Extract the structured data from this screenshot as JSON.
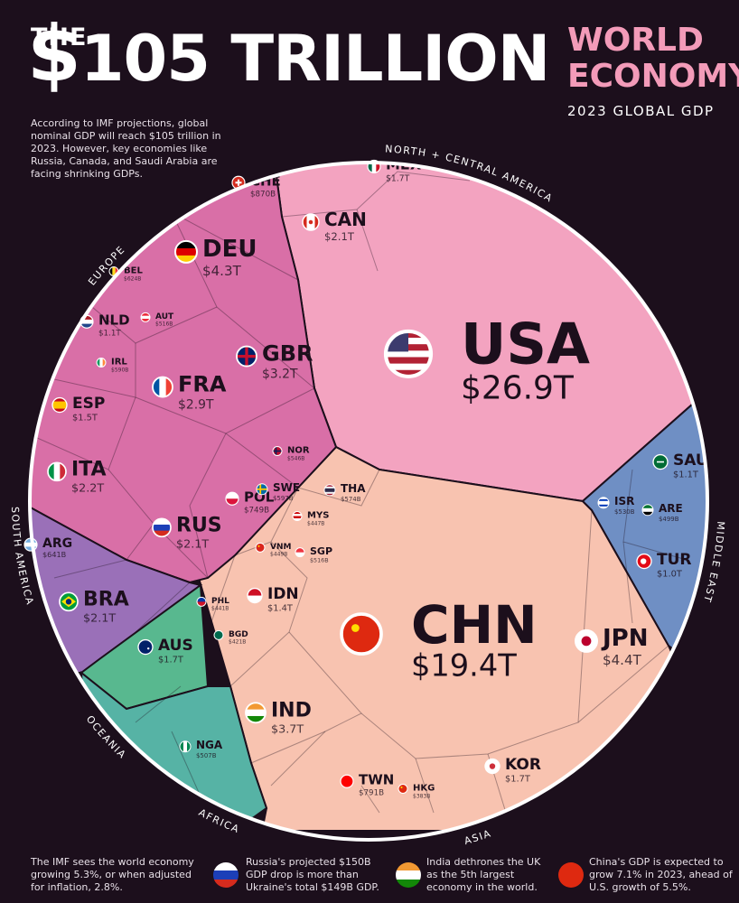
{
  "header": {
    "the": "THE",
    "big": "105 TRILLION",
    "dollar": "$",
    "world": "WORLD",
    "economy": "ECONOMY",
    "subtitle": "2023 GLOBAL GDP"
  },
  "intro": "According to IMF projections, global nominal GDP will reach $105 trillion in 2023. However, key economies like Russia, Canada, and Saudi Arabia are facing shrinking GDPs.",
  "footer": {
    "main": "The IMF sees the world economy growing 5.3%, or when adjusted for inflation, 2.8%.",
    "notes": [
      "Russia's projected $150B GDP drop is more than Ukraine's total $149B GDP.",
      "India dethrones the UK as the 5th largest economy in the world.",
      "China's GDP is expected to grow 7.1% in 2023, ahead of U.S. growth of 5.5%."
    ]
  },
  "colors": {
    "background": "#1c0f1c",
    "north_central_america": "#f3a3c0",
    "asia": "#f8c3b0",
    "europe": "#d96fa7",
    "middle_east": "#6f8fc4",
    "south_america": "#9a70b8",
    "oceania": "#58b88f",
    "africa": "#56b3a5"
  },
  "chart_data": {
    "type": "voronoi-treemap",
    "title": "$105 TRILLION WORLD ECONOMY",
    "subtitle": "2023 GLOBAL GDP",
    "regions": [
      "NORTH + CENTRAL AMERICA",
      "MIDDLE EAST",
      "ASIA",
      "AFRICA",
      "OCEANIA",
      "SOUTH AMERICA",
      "EUROPE"
    ],
    "countries": [
      {
        "code": "USA",
        "value": "$26.9T",
        "region": "NORTH + CENTRAL AMERICA"
      },
      {
        "code": "CAN",
        "value": "$2.1T",
        "region": "NORTH + CENTRAL AMERICA"
      },
      {
        "code": "MEX",
        "value": "$1.7T",
        "region": "NORTH + CENTRAL AMERICA"
      },
      {
        "code": "CHN",
        "value": "$19.4T",
        "region": "ASIA"
      },
      {
        "code": "JPN",
        "value": "$4.4T",
        "region": "ASIA"
      },
      {
        "code": "IND",
        "value": "$3.7T",
        "region": "ASIA"
      },
      {
        "code": "KOR",
        "value": "$1.7T",
        "region": "ASIA"
      },
      {
        "code": "IDN",
        "value": "$1.4T",
        "region": "ASIA"
      },
      {
        "code": "TWN",
        "value": "$791B",
        "region": "ASIA"
      },
      {
        "code": "THA",
        "value": "$574B",
        "region": "ASIA"
      },
      {
        "code": "SGP",
        "value": "$516B",
        "region": "ASIA"
      },
      {
        "code": "MYS",
        "value": "$447B",
        "region": "ASIA"
      },
      {
        "code": "VNM",
        "value": "$449B",
        "region": "ASIA"
      },
      {
        "code": "PHL",
        "value": "$441B",
        "region": "ASIA"
      },
      {
        "code": "BGD",
        "value": "$421B",
        "region": "ASIA"
      },
      {
        "code": "HKG",
        "value": "$383B",
        "region": "ASIA"
      },
      {
        "code": "SAU",
        "value": "$1.1T",
        "region": "MIDDLE EAST"
      },
      {
        "code": "TUR",
        "value": "$1.0T",
        "region": "MIDDLE EAST"
      },
      {
        "code": "ISR",
        "value": "$530B",
        "region": "MIDDLE EAST"
      },
      {
        "code": "ARE",
        "value": "$499B",
        "region": "MIDDLE EAST"
      },
      {
        "code": "DEU",
        "value": "$4.3T",
        "region": "EUROPE"
      },
      {
        "code": "GBR",
        "value": "$3.2T",
        "region": "EUROPE"
      },
      {
        "code": "FRA",
        "value": "$2.9T",
        "region": "EUROPE"
      },
      {
        "code": "ITA",
        "value": "$2.2T",
        "region": "EUROPE"
      },
      {
        "code": "RUS",
        "value": "$2.1T",
        "region": "EUROPE"
      },
      {
        "code": "ESP",
        "value": "$1.5T",
        "region": "EUROPE"
      },
      {
        "code": "NLD",
        "value": "$1.1T",
        "region": "EUROPE"
      },
      {
        "code": "CHE",
        "value": "$870B",
        "region": "EUROPE"
      },
      {
        "code": "POL",
        "value": "$749B",
        "region": "EUROPE"
      },
      {
        "code": "SWE",
        "value": "$597B",
        "region": "EUROPE"
      },
      {
        "code": "BEL",
        "value": "$624B",
        "region": "EUROPE"
      },
      {
        "code": "IRL",
        "value": "$590B",
        "region": "EUROPE"
      },
      {
        "code": "NOR",
        "value": "$546B",
        "region": "EUROPE"
      },
      {
        "code": "AUT",
        "value": "$516B",
        "region": "EUROPE"
      },
      {
        "code": "BRA",
        "value": "$2.1T",
        "region": "SOUTH AMERICA"
      },
      {
        "code": "ARG",
        "value": "$641B",
        "region": "SOUTH AMERICA"
      },
      {
        "code": "AUS",
        "value": "$1.7T",
        "region": "OCEANIA"
      },
      {
        "code": "NGA",
        "value": "$507B",
        "region": "AFRICA"
      }
    ]
  }
}
